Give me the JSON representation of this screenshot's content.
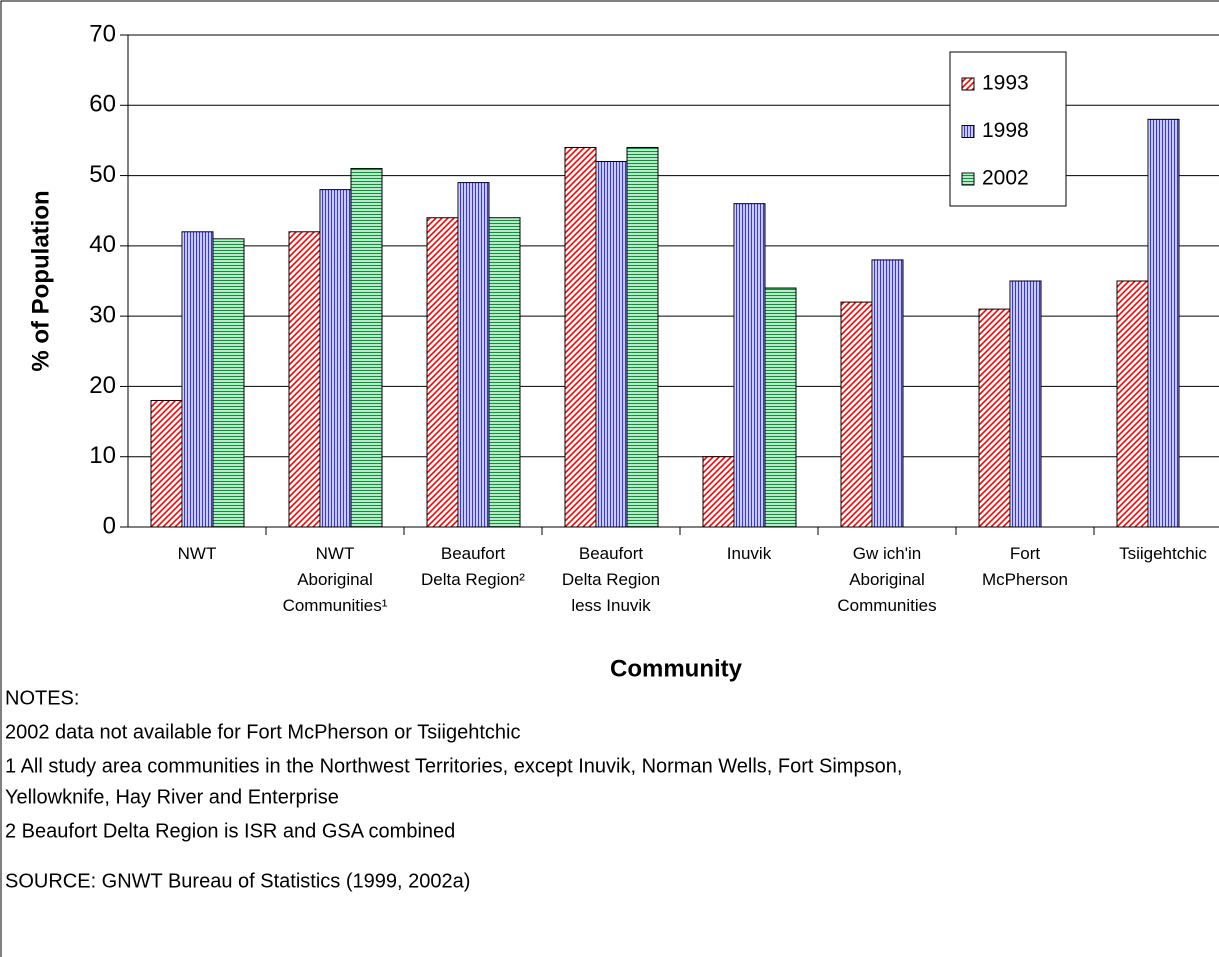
{
  "chart_data": {
    "type": "bar",
    "y_axis_title": "% of Population",
    "x_axis_title": "Community",
    "categories": [
      "NWT",
      "NWT\nAboriginal\nCommunities¹",
      "Beaufort\nDelta Region²",
      "Beaufort\nDelta Region\nless Inuvik",
      "Inuvik",
      "Gw ich'in\nAboriginal\nCommunities",
      "Fort\nMcPherson",
      "Tsiigehtchic"
    ],
    "series": [
      {
        "name": "1993",
        "color": "#ff0000",
        "pattern": "diagonal",
        "values": [
          18,
          42,
          44,
          54,
          10,
          32,
          31,
          35
        ]
      },
      {
        "name": "1998",
        "color": "#3333ff",
        "pattern": "vertical",
        "values": [
          42,
          48,
          49,
          52,
          46,
          38,
          35,
          58
        ]
      },
      {
        "name": "2002",
        "color": "#009933",
        "pattern": "horizontal",
        "values": [
          41,
          51,
          44,
          54,
          34,
          null,
          null,
          null
        ]
      }
    ],
    "ylim": [
      0,
      70
    ],
    "yticks": [
      0,
      10,
      20,
      30,
      40,
      50,
      60,
      70
    ],
    "grid": true,
    "legend": "upper right",
    "notes": [
      "NOTES:",
      "2002 data not available for Fort McPherson or Tsiigehtchic",
      "1  All study area communities in the Northwest Territories, except Inuvik, Norman Wells, Fort Simpson,",
      "Yellowknife, Hay River and Enterprise",
      "2  Beaufort Delta Region is ISR and GSA combined"
    ],
    "source": "SOURCE:  GNWT Bureau of Statistics (1999, 2002a)"
  }
}
